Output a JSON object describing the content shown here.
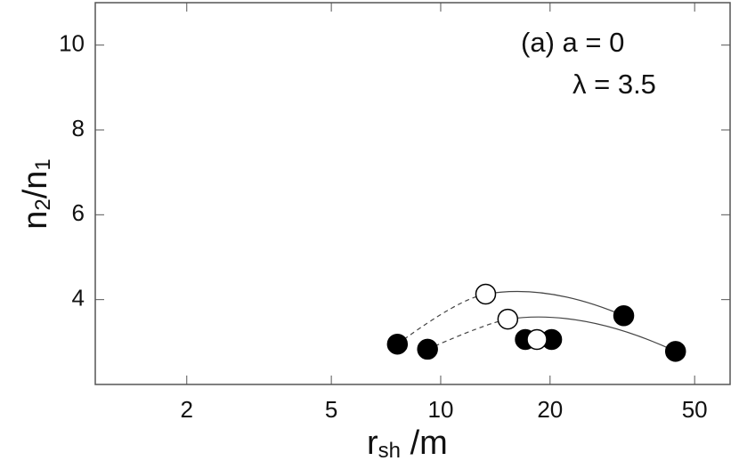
{
  "chart_data": {
    "type": "scatter",
    "xscale": "log",
    "annotations": [
      "(a) a = 0",
      "λ = 3.5"
    ],
    "xlabel_parts": [
      "r",
      "sh",
      " /m"
    ],
    "ylabel_parts": [
      "n",
      "2",
      "/n",
      "1"
    ],
    "xlim": [
      1.12,
      62.6
    ],
    "xticks": [
      2,
      5,
      10,
      20,
      50
    ],
    "ylim": [
      2,
      11
    ],
    "yticks": [
      4,
      6,
      8,
      10
    ],
    "series": [
      {
        "color": "#000000",
        "fill": "filled",
        "x": [
          7.6,
          9.2,
          17.1,
          20.2,
          31.9,
          44.3
        ],
        "values": [
          2.95,
          2.83,
          3.06,
          3.06,
          3.62,
          2.78
        ]
      },
      {
        "color": "#000000",
        "fill": "open",
        "x": [
          13.3,
          15.3,
          18.4
        ],
        "values": [
          4.13,
          3.54,
          3.06
        ]
      }
    ]
  }
}
